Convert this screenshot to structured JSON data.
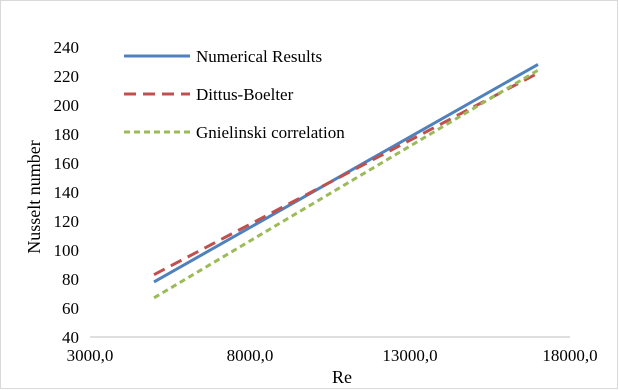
{
  "chart_data": {
    "type": "line",
    "xlabel": "Re",
    "ylabel": "Nusselt number",
    "xlim": [
      3000,
      18000
    ],
    "ylim": [
      40,
      240
    ],
    "x_ticks": [
      "3000,0",
      "8000,0",
      "13000,0",
      "18000,0"
    ],
    "y_ticks": [
      "40",
      "60",
      "80",
      "100",
      "120",
      "140",
      "160",
      "180",
      "200",
      "220",
      "240"
    ],
    "x_tick_values": [
      3000,
      8000,
      13000,
      18000
    ],
    "y_tick_values": [
      40,
      60,
      80,
      100,
      120,
      140,
      160,
      180,
      200,
      220,
      240
    ],
    "grid": false,
    "legend_position": "top-left",
    "series": [
      {
        "name": "Numerical Results",
        "color": "#4F81BD",
        "style": "solid",
        "x": [
          5000,
          17000
        ],
        "y": [
          78,
          228
        ]
      },
      {
        "name": "Dittus-Boelter",
        "color": "#C0504D",
        "style": "dashed",
        "x": [
          5000,
          17000
        ],
        "y": [
          83,
          222
        ]
      },
      {
        "name": "Gnielinski correlation",
        "color": "#9BBB59",
        "style": "dotted",
        "x": [
          5000,
          17000
        ],
        "y": [
          67,
          224
        ]
      }
    ]
  }
}
